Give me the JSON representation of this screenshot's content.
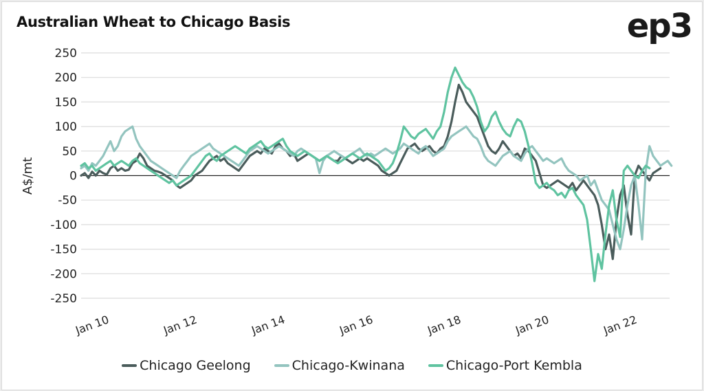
{
  "brand": {
    "logo_text": "ep3"
  },
  "chart_data": {
    "type": "line",
    "title": "Australian Wheat to Chicago Basis",
    "xlabel": "",
    "ylabel": "A$/mt",
    "ylim": [
      -250,
      250
    ],
    "yticks": [
      250,
      200,
      150,
      100,
      50,
      0,
      -50,
      -100,
      -150,
      -200,
      -250
    ],
    "xticks": [
      "Jan 10",
      "Jan 12",
      "Jan 14",
      "Jan 16",
      "Jan 18",
      "Jan 20",
      "Jan 22"
    ],
    "x_start": "2010-01",
    "x_frequency": "monthly",
    "grid": true,
    "zero_line": true,
    "legend_position": "bottom",
    "series": [
      {
        "name": "Chicago Geelong",
        "color": "#4a5c5b",
        "values": [
          0,
          5,
          -5,
          8,
          0,
          10,
          5,
          2,
          15,
          20,
          10,
          15,
          10,
          12,
          25,
          30,
          45,
          35,
          20,
          15,
          10,
          8,
          5,
          0,
          -5,
          -10,
          -20,
          -25,
          -20,
          -15,
          -10,
          0,
          5,
          10,
          20,
          30,
          35,
          40,
          30,
          35,
          25,
          20,
          15,
          10,
          20,
          30,
          40,
          45,
          50,
          45,
          55,
          50,
          45,
          60,
          65,
          55,
          50,
          40,
          45,
          30,
          35,
          40,
          45,
          40,
          35,
          30,
          35,
          40,
          35,
          30,
          30,
          40,
          35,
          30,
          25,
          30,
          35,
          30,
          35,
          30,
          25,
          20,
          10,
          5,
          0,
          5,
          10,
          25,
          40,
          55,
          60,
          65,
          55,
          50,
          55,
          60,
          50,
          45,
          55,
          60,
          80,
          110,
          150,
          185,
          170,
          150,
          140,
          130,
          120,
          100,
          80,
          60,
          50,
          45,
          55,
          70,
          60,
          50,
          40,
          45,
          35,
          55,
          50,
          40,
          30,
          5,
          -20,
          -25,
          -20,
          -15,
          -10,
          -15,
          -20,
          -25,
          -15,
          -30,
          -20,
          -10,
          -20,
          -30,
          -40,
          -60,
          -100,
          -150,
          -120,
          -170,
          -90,
          -40,
          -20,
          -80,
          -120,
          0,
          20,
          10,
          0,
          -10,
          5,
          10,
          15
        ]
      },
      {
        "name": "Chicago-Kwinana",
        "color": "#93c4bf",
        "values": [
          15,
          20,
          10,
          25,
          20,
          30,
          40,
          55,
          70,
          50,
          60,
          80,
          90,
          95,
          100,
          75,
          60,
          50,
          40,
          30,
          25,
          20,
          15,
          10,
          5,
          0,
          -5,
          10,
          20,
          30,
          40,
          45,
          50,
          55,
          60,
          65,
          55,
          50,
          45,
          40,
          35,
          30,
          25,
          20,
          30,
          40,
          50,
          55,
          60,
          55,
          50,
          45,
          50,
          55,
          60,
          55,
          50,
          45,
          40,
          50,
          55,
          50,
          45,
          40,
          35,
          5,
          30,
          40,
          45,
          50,
          45,
          40,
          35,
          40,
          45,
          50,
          55,
          45,
          40,
          45,
          40,
          45,
          50,
          55,
          50,
          45,
          50,
          55,
          65,
          60,
          55,
          50,
          45,
          55,
          60,
          50,
          40,
          45,
          50,
          55,
          70,
          80,
          85,
          90,
          95,
          100,
          90,
          80,
          75,
          60,
          40,
          30,
          25,
          20,
          30,
          40,
          45,
          50,
          40,
          35,
          30,
          45,
          55,
          60,
          50,
          40,
          30,
          35,
          30,
          25,
          30,
          35,
          20,
          10,
          5,
          0,
          -10,
          -5,
          0,
          -20,
          -10,
          -30,
          -50,
          -60,
          -70,
          -100,
          -130,
          -150,
          -110,
          -60,
          -20,
          0,
          -60,
          -130,
          10,
          60,
          40,
          30,
          20,
          25,
          30,
          20
        ]
      },
      {
        "name": "Chicago-Port Kembla",
        "color": "#5fc3a0",
        "values": [
          20,
          25,
          15,
          20,
          10,
          15,
          20,
          25,
          30,
          20,
          25,
          30,
          25,
          20,
          30,
          35,
          25,
          20,
          15,
          10,
          5,
          0,
          -5,
          -10,
          -15,
          -10,
          -20,
          -15,
          -10,
          -5,
          0,
          10,
          20,
          30,
          40,
          45,
          35,
          30,
          40,
          45,
          50,
          55,
          60,
          55,
          50,
          45,
          55,
          60,
          65,
          70,
          60,
          55,
          60,
          65,
          70,
          75,
          60,
          50,
          45,
          40,
          45,
          50,
          45,
          40,
          35,
          30,
          35,
          40,
          35,
          30,
          25,
          30,
          35,
          40,
          45,
          40,
          35,
          40,
          45,
          40,
          35,
          30,
          20,
          10,
          15,
          25,
          45,
          70,
          100,
          90,
          80,
          75,
          85,
          90,
          95,
          85,
          75,
          90,
          100,
          130,
          170,
          200,
          220,
          205,
          190,
          180,
          175,
          160,
          140,
          110,
          90,
          100,
          120,
          130,
          110,
          95,
          85,
          80,
          100,
          115,
          110,
          90,
          60,
          25,
          -15,
          -25,
          -20,
          -15,
          -25,
          -30,
          -40,
          -35,
          -45,
          -30,
          -25,
          -40,
          -50,
          -60,
          -90,
          -150,
          -215,
          -160,
          -190,
          -120,
          -60,
          -30,
          -90,
          -125,
          10,
          20,
          10,
          0,
          -5,
          10,
          20,
          15
        ]
      }
    ]
  }
}
